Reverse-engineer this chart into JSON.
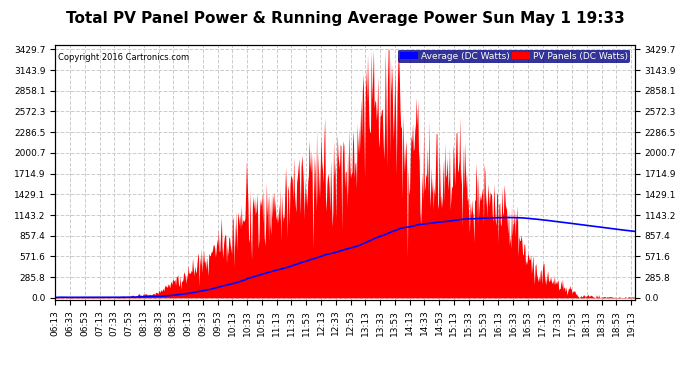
{
  "title": "Total PV Panel Power & Running Average Power Sun May 1 19:33",
  "copyright": "Copyright 2016 Cartronics.com",
  "legend_avg_label": "Average (DC Watts)",
  "legend_pv_label": "PV Panels (DC Watts)",
  "avg_color": "#0000ff",
  "pv_color": "#ff0000",
  "bg_color": "#ffffff",
  "grid_color": "#cccccc",
  "title_fontsize": 11,
  "tick_fontsize": 6.5,
  "yticks": [
    0.0,
    285.8,
    571.6,
    857.4,
    1143.2,
    1429.1,
    1714.9,
    2000.7,
    2286.5,
    2572.3,
    2858.1,
    3143.9,
    3429.7
  ],
  "ymax": 3429.7,
  "ymin": 0.0,
  "xstart_hour": 6,
  "xstart_min": 13,
  "xend_hour": 19,
  "xend_min": 18
}
